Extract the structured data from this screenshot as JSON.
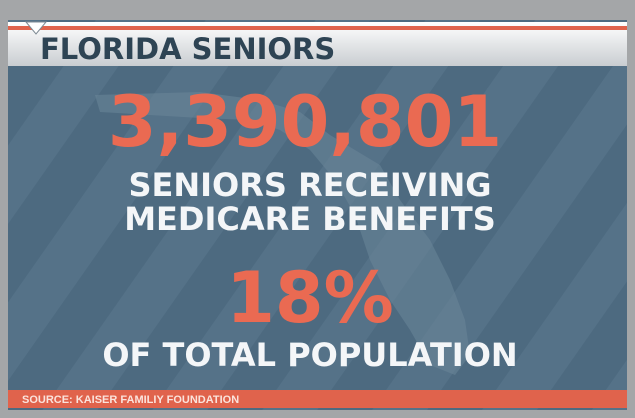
{
  "header": {
    "title": "FLORIDA SENIORS"
  },
  "stats": [
    {
      "value": "3,390,801",
      "lines": [
        "SENIORS RECEIVING",
        "MEDICARE BENEFITS"
      ]
    },
    {
      "value": "18%",
      "lines": [
        "OF TOTAL POPULATION"
      ]
    }
  ],
  "source": "SOURCE: KAISER FAMILIY FOUNDATION"
}
